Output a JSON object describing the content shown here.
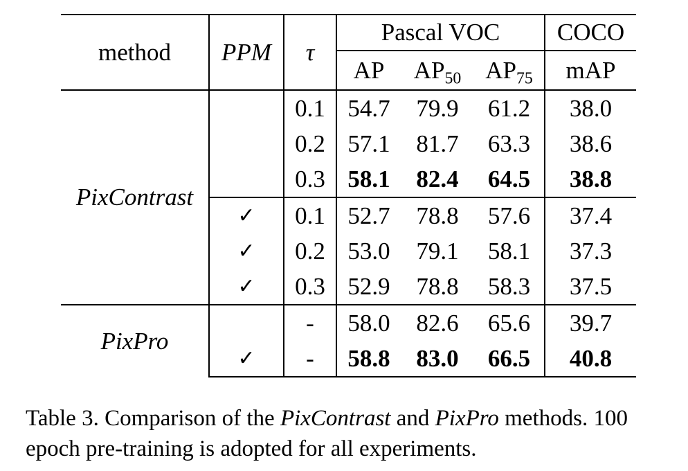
{
  "table": {
    "headers": {
      "method": "method",
      "ppm": "PPM",
      "tau": "τ",
      "pascal_voc": "Pascal VOC",
      "coco": "COCO",
      "ap": "AP",
      "ap50": "AP",
      "ap50_sub": "50",
      "ap75": "AP",
      "ap75_sub": "75",
      "map": "mAP"
    },
    "groups": [
      {
        "method": "PixContrast",
        "rows": [
          {
            "ppm": "",
            "tau": "0.1",
            "ap": "54.7",
            "ap50": "79.9",
            "ap75": "61.2",
            "map": "38.0",
            "bold": false
          },
          {
            "ppm": "",
            "tau": "0.2",
            "ap": "57.1",
            "ap50": "81.7",
            "ap75": "63.3",
            "map": "38.6",
            "bold": false
          },
          {
            "ppm": "",
            "tau": "0.3",
            "ap": "58.1",
            "ap50": "82.4",
            "ap75": "64.5",
            "map": "38.8",
            "bold": true
          },
          {
            "ppm": "✓",
            "tau": "0.1",
            "ap": "52.7",
            "ap50": "78.8",
            "ap75": "57.6",
            "map": "37.4",
            "bold": false
          },
          {
            "ppm": "✓",
            "tau": "0.2",
            "ap": "53.0",
            "ap50": "79.1",
            "ap75": "58.1",
            "map": "37.3",
            "bold": false
          },
          {
            "ppm": "✓",
            "tau": "0.3",
            "ap": "52.9",
            "ap50": "78.8",
            "ap75": "58.3",
            "map": "37.5",
            "bold": false
          }
        ]
      },
      {
        "method": "PixPro",
        "rows": [
          {
            "ppm": "",
            "tau": "-",
            "ap": "58.0",
            "ap50": "82.6",
            "ap75": "65.6",
            "map": "39.7",
            "bold": false
          },
          {
            "ppm": "✓",
            "tau": "-",
            "ap": "58.8",
            "ap50": "83.0",
            "ap75": "66.5",
            "map": "40.8",
            "bold": true
          }
        ]
      }
    ]
  },
  "caption": {
    "prefix": "Table 3. Comparison of the ",
    "method1": "PixContrast",
    "middle": " and ",
    "method2": "PixPro",
    "suffix": " methods. 100 epoch pre-training is adopted for all experiments."
  }
}
